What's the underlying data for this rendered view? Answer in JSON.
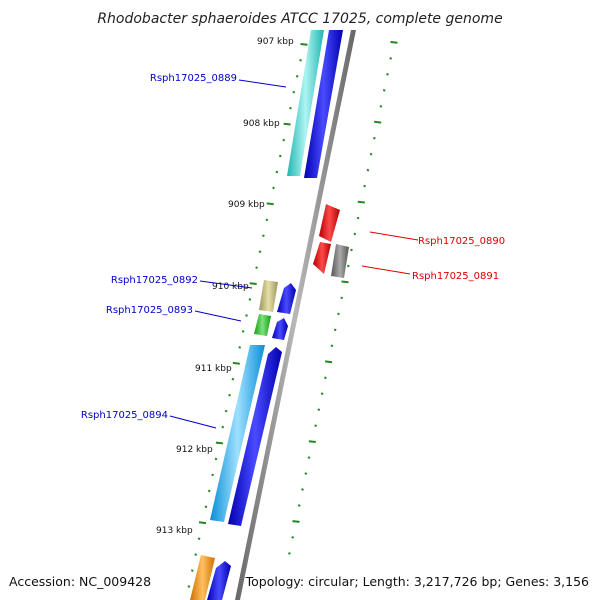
{
  "title": "Rhodobacter sphaeroides ATCC 17025, complete genome",
  "footer": {
    "accession": "Accession: NC_009428",
    "topology": "Topology: circular; Length: 3,217,726 bp; Genes: 3,156"
  },
  "kbp_labels": [
    "907 kbp",
    "908 kbp",
    "909 kbp",
    "910 kbp",
    "911 kbp",
    "912 kbp",
    "913 kbp"
  ],
  "gene_labels": {
    "g0889": "Rsph17025_0889",
    "g0890": "Rsph17025_0890",
    "g0891": "Rsph17025_0891",
    "g0892": "Rsph17025_0892",
    "g0893": "Rsph17025_0893",
    "g0894": "Rsph17025_0894"
  },
  "colors": {
    "left_label": "#0000cc",
    "right_label": "#dd0000",
    "backbone": "#888888",
    "scale_ticks": "#228822"
  }
}
